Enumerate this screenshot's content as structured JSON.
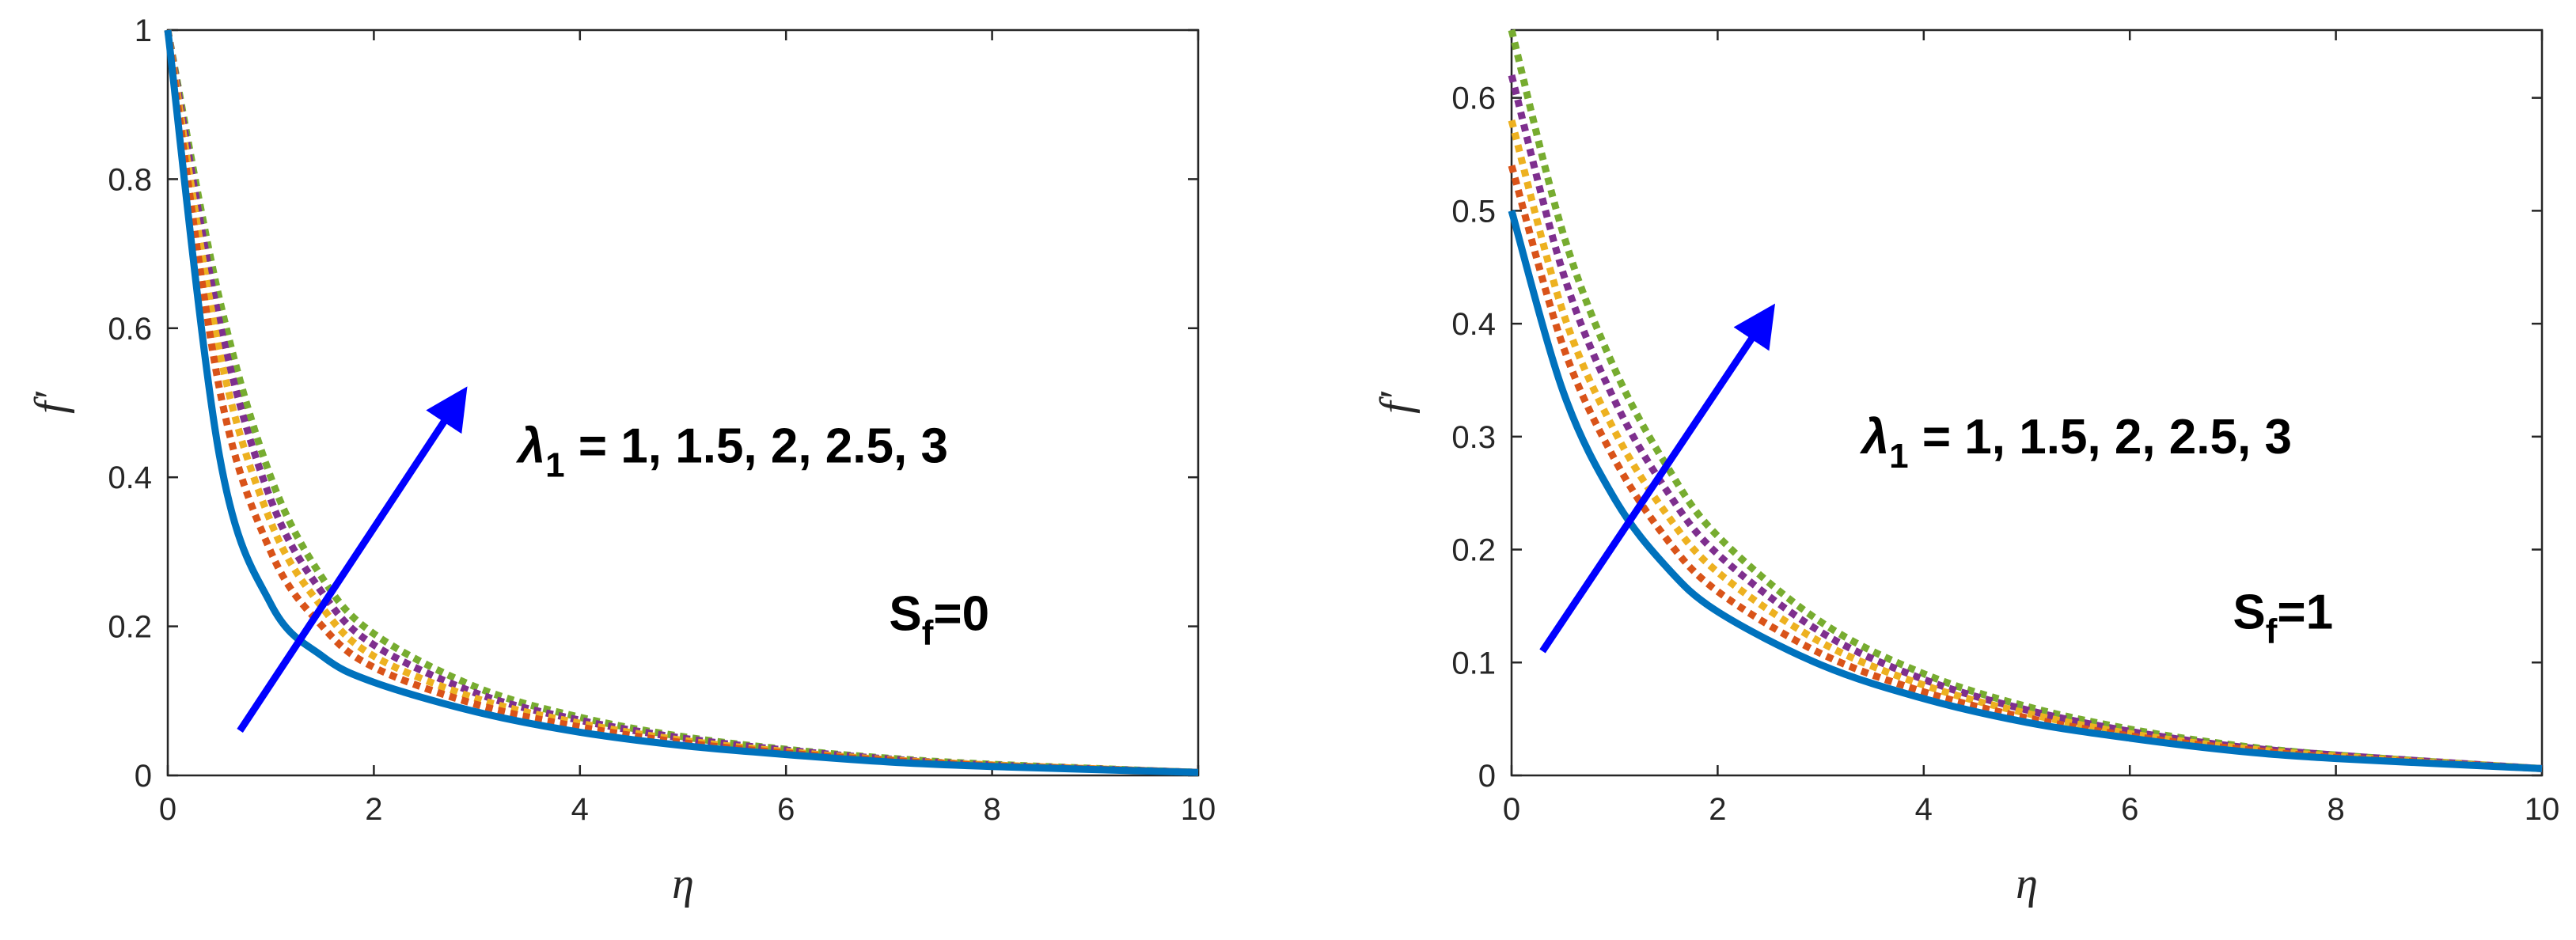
{
  "colors": {
    "series": [
      "#0072BD",
      "#D95319",
      "#EDB120",
      "#7E2F8E",
      "#77AC30"
    ],
    "arrow": "#0000FF",
    "axis": "#262626"
  },
  "chart_data": [
    {
      "type": "line",
      "xlabel": "η",
      "ylabel": "f′",
      "xlim": [
        0,
        10
      ],
      "ylim": [
        0,
        1
      ],
      "xticks": [
        "0",
        "2",
        "4",
        "6",
        "8",
        "10"
      ],
      "yticks": [
        "0",
        "0.2",
        "0.4",
        "0.6",
        "0.8",
        "1"
      ],
      "x": [
        0,
        0.5,
        1,
        1.5,
        2,
        3,
        4,
        5,
        6,
        7,
        8,
        10
      ],
      "series": [
        {
          "line_style": "solid",
          "values": [
            1.0,
            0.43,
            0.23,
            0.16,
            0.125,
            0.085,
            0.058,
            0.04,
            0.028,
            0.018,
            0.012,
            0.004
          ]
        },
        {
          "line_style": "dotted",
          "values": [
            1.0,
            0.52,
            0.3,
            0.2,
            0.145,
            0.095,
            0.065,
            0.044,
            0.03,
            0.02,
            0.013,
            0.004
          ]
        },
        {
          "line_style": "dotted",
          "values": [
            1.0,
            0.57,
            0.34,
            0.225,
            0.16,
            0.103,
            0.07,
            0.047,
            0.032,
            0.021,
            0.014,
            0.004
          ]
        },
        {
          "line_style": "dotted",
          "values": [
            1.0,
            0.61,
            0.37,
            0.245,
            0.175,
            0.11,
            0.074,
            0.05,
            0.034,
            0.022,
            0.014,
            0.004
          ]
        },
        {
          "line_style": "dotted",
          "values": [
            1.0,
            0.64,
            0.4,
            0.265,
            0.19,
            0.118,
            0.078,
            0.052,
            0.035,
            0.023,
            0.015,
            0.004
          ]
        }
      ],
      "arrow": {
        "from": [
          0.7,
          0.06
        ],
        "to": [
          2.85,
          0.51
        ]
      },
      "annotations": {
        "lambda_sym": "λ",
        "lambda_sub": "1",
        "lambda_values": " = 1, 1.5, 2, 2.5, 3",
        "s_sym": "S",
        "s_sub": "f",
        "s_value": "=0"
      },
      "annotation_pos": {
        "lambda": [
          3.4,
          0.42
        ],
        "s": [
          7.0,
          0.195
        ]
      }
    },
    {
      "type": "line",
      "xlabel": "η",
      "ylabel": "f′",
      "xlim": [
        0,
        10
      ],
      "ylim": [
        0,
        0.66
      ],
      "xticks": [
        "0",
        "2",
        "4",
        "6",
        "8",
        "10"
      ],
      "yticks": [
        "0",
        "0.1",
        "0.2",
        "0.3",
        "0.4",
        "0.5",
        "0.6"
      ],
      "x": [
        0,
        0.5,
        1,
        1.5,
        2,
        3,
        4,
        5,
        6,
        7,
        8,
        10
      ],
      "series": [
        {
          "line_style": "solid",
          "values": [
            0.5,
            0.34,
            0.245,
            0.185,
            0.145,
            0.098,
            0.068,
            0.047,
            0.033,
            0.022,
            0.015,
            0.006
          ]
        },
        {
          "line_style": "dotted",
          "values": [
            0.54,
            0.38,
            0.28,
            0.21,
            0.163,
            0.108,
            0.074,
            0.051,
            0.035,
            0.024,
            0.016,
            0.006
          ]
        },
        {
          "line_style": "dotted",
          "values": [
            0.58,
            0.41,
            0.305,
            0.232,
            0.18,
            0.118,
            0.08,
            0.055,
            0.037,
            0.025,
            0.017,
            0.006
          ]
        },
        {
          "line_style": "dotted",
          "values": [
            0.62,
            0.445,
            0.332,
            0.253,
            0.196,
            0.127,
            0.085,
            0.058,
            0.039,
            0.026,
            0.018,
            0.006
          ]
        },
        {
          "line_style": "dotted",
          "values": [
            0.66,
            0.48,
            0.36,
            0.275,
            0.212,
            0.136,
            0.09,
            0.061,
            0.041,
            0.027,
            0.018,
            0.006
          ]
        }
      ],
      "arrow": {
        "from": [
          0.3,
          0.11
        ],
        "to": [
          2.5,
          0.41
        ]
      },
      "annotations": {
        "lambda_sym": "λ",
        "lambda_sub": "1",
        "lambda_values": " = 1, 1.5, 2, 2.5, 3",
        "s_sym": "S",
        "s_sub": "f",
        "s_value": "=1"
      },
      "annotation_pos": {
        "lambda": [
          3.4,
          0.285
        ],
        "s": [
          7.0,
          0.13
        ]
      }
    }
  ]
}
